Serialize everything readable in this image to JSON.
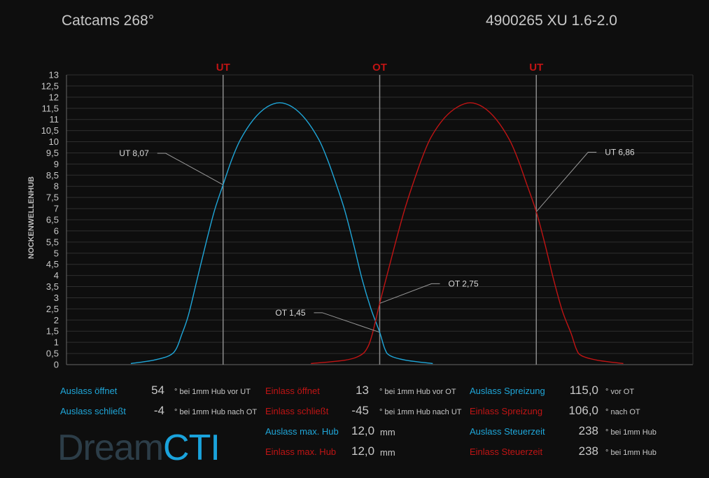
{
  "header": {
    "title_left": "Catcams 268°",
    "title_right": "4900265  XU 1.6-2.0"
  },
  "colors": {
    "exhaust": "#1fa6d8",
    "intake": "#c01414",
    "marker": "#c01414"
  },
  "chart_data": {
    "type": "line",
    "ylabel": "NOCKENWELLENHUB",
    "xlim": [
      0,
      720
    ],
    "ylim": [
      0,
      13
    ],
    "yticks": [
      "0",
      "0,5",
      "1",
      "1,5",
      "2",
      "2,5",
      "3",
      "3,5",
      "4",
      "4,5",
      "5",
      "5,5",
      "6",
      "6,5",
      "7",
      "7,5",
      "8",
      "8,5",
      "9",
      "9,5",
      "10",
      "10,5",
      "11",
      "11,5",
      "12",
      "12,5",
      "13"
    ],
    "grid": true,
    "markers": [
      {
        "x": 180,
        "label": "UT"
      },
      {
        "x": 360,
        "label": "OT"
      },
      {
        "x": 540,
        "label": "UT"
      }
    ],
    "series": [
      {
        "name": "Auslass",
        "color": "#1fa6d8",
        "points": [
          [
            74,
            0.05
          ],
          [
            100,
            0.2
          ],
          [
            118,
            0.4
          ],
          [
            126,
            0.7
          ],
          [
            132,
            1.3
          ],
          [
            140,
            2.2
          ],
          [
            150,
            3.8
          ],
          [
            160,
            5.4
          ],
          [
            170,
            6.9
          ],
          [
            180,
            8.07
          ],
          [
            190,
            9.2
          ],
          [
            200,
            10.1
          ],
          [
            215,
            11.0
          ],
          [
            230,
            11.55
          ],
          [
            245,
            11.75
          ],
          [
            260,
            11.55
          ],
          [
            275,
            11.0
          ],
          [
            290,
            10.1
          ],
          [
            300,
            9.2
          ],
          [
            310,
            8.1
          ],
          [
            320,
            6.9
          ],
          [
            330,
            5.4
          ],
          [
            340,
            3.8
          ],
          [
            350,
            2.5
          ],
          [
            360,
            1.45
          ],
          [
            366,
            0.7
          ],
          [
            372,
            0.4
          ],
          [
            390,
            0.2
          ],
          [
            421,
            0.05
          ]
        ]
      },
      {
        "name": "Einlass",
        "color": "#c01414",
        "points": [
          [
            281,
            0.05
          ],
          [
            320,
            0.2
          ],
          [
            337,
            0.4
          ],
          [
            345,
            0.7
          ],
          [
            351,
            1.3
          ],
          [
            360,
            2.75
          ],
          [
            369,
            4.1
          ],
          [
            379,
            5.6
          ],
          [
            389,
            7.0
          ],
          [
            399,
            8.2
          ],
          [
            409,
            9.3
          ],
          [
            419,
            10.2
          ],
          [
            434,
            11.05
          ],
          [
            449,
            11.55
          ],
          [
            464,
            11.75
          ],
          [
            479,
            11.55
          ],
          [
            494,
            11.0
          ],
          [
            509,
            10.1
          ],
          [
            519,
            9.2
          ],
          [
            529,
            8.1
          ],
          [
            540,
            6.86
          ],
          [
            550,
            5.4
          ],
          [
            560,
            3.8
          ],
          [
            570,
            2.4
          ],
          [
            580,
            1.4
          ],
          [
            586,
            0.7
          ],
          [
            592,
            0.4
          ],
          [
            610,
            0.2
          ],
          [
            640,
            0.05
          ]
        ]
      }
    ],
    "annotations": [
      {
        "label": "UT 8,07",
        "x": 180,
        "y": 8.07,
        "side": "left"
      },
      {
        "label": "UT 6,86",
        "x": 540,
        "y": 6.86,
        "side": "right"
      },
      {
        "label": "OT 2,75",
        "x": 360,
        "y": 2.75,
        "side": "right"
      },
      {
        "label": "OT 1,45",
        "x": 360,
        "y": 1.45,
        "side": "left"
      }
    ]
  },
  "stats": {
    "c1": [
      {
        "label": "Auslass öffnet",
        "value": "54",
        "unit": "° bei 1mm Hub vor UT",
        "color": "blue"
      },
      {
        "label": "Auslass schließt",
        "value": "-4",
        "unit": "° bei 1mm Hub nach OT",
        "color": "blue"
      }
    ],
    "c2": [
      {
        "label": "Einlass öffnet",
        "value": "13",
        "unit": "° bei 1mm Hub vor OT",
        "color": "red"
      },
      {
        "label": "Einlass schließt",
        "value": "-45",
        "unit": "° bei 1mm Hub nach UT",
        "color": "red"
      },
      {
        "label": "Auslass max. Hub",
        "value": "12,0",
        "unit": "mm",
        "color": "blue"
      },
      {
        "label": "Einlass max. Hub",
        "value": "12,0",
        "unit": "mm",
        "color": "red"
      }
    ],
    "c3": [
      {
        "label": "Auslass Spreizung",
        "value": "115,0",
        "unit": "° vor OT",
        "color": "blue"
      },
      {
        "label": "Einlass Spreizung",
        "value": "106,0",
        "unit": "° nach OT",
        "color": "red"
      },
      {
        "label": "Auslass Steuerzeit",
        "value": "238",
        "unit": "° bei 1mm Hub",
        "color": "blue"
      },
      {
        "label": "Einlass Steuerzeit",
        "value": "238",
        "unit": "° bei 1mm Hub",
        "color": "red"
      }
    ]
  },
  "logo": {
    "part1": "Dream",
    "part2": "CTI"
  }
}
